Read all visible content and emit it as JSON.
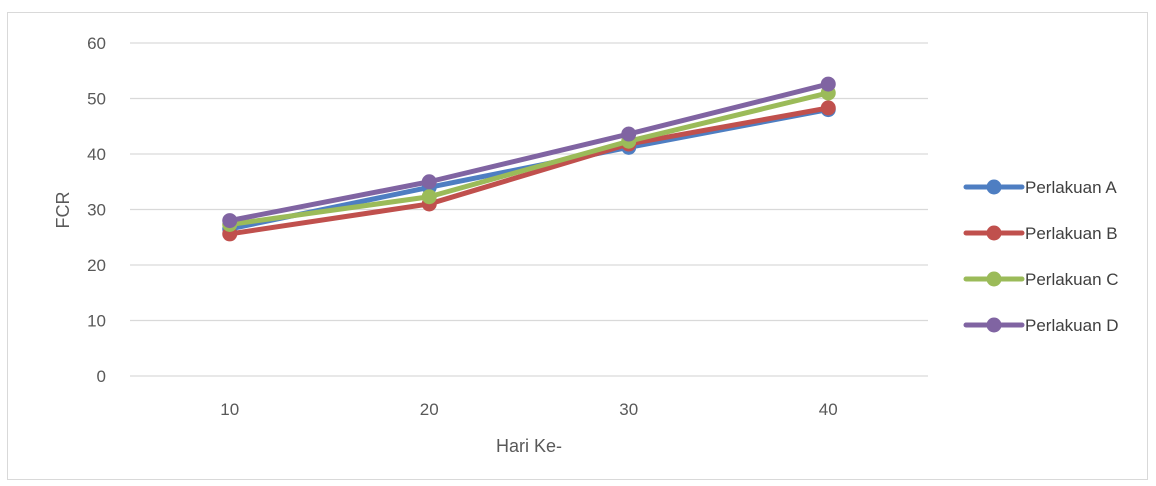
{
  "chart_data": {
    "type": "line",
    "title": "",
    "xlabel": "Hari Ke-",
    "ylabel": "FCR",
    "categories": [
      "10",
      "20",
      "30",
      "40"
    ],
    "ylim": [
      0,
      60
    ],
    "yticks": [
      "0",
      "10",
      "20",
      "30",
      "40",
      "50",
      "60"
    ],
    "grid": true,
    "legend_position": "right",
    "series": [
      {
        "name": "Perlakuan A",
        "color": "#4e7ec2",
        "values": [
          26.5,
          34.0,
          41.2,
          48.0
        ]
      },
      {
        "name": "Perlakuan B",
        "color": "#c0504d",
        "values": [
          25.6,
          31.0,
          41.8,
          48.3
        ]
      },
      {
        "name": "Perlakuan C",
        "color": "#9bbb59",
        "values": [
          27.3,
          32.3,
          42.3,
          51.0
        ]
      },
      {
        "name": "Perlakuan D",
        "color": "#8064a2",
        "values": [
          28.0,
          35.0,
          43.6,
          52.6
        ]
      }
    ]
  }
}
